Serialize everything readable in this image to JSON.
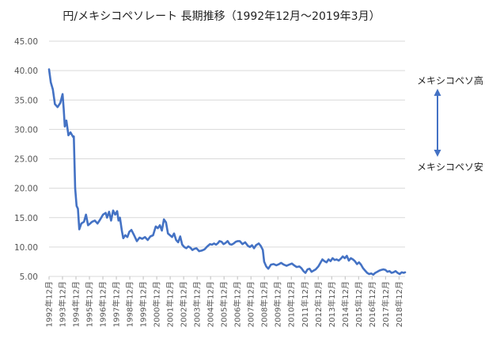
{
  "chart_data": {
    "type": "line",
    "title": "円/メキシコペソレート 長期推移（1992年12月～2019年3月）",
    "xlabel": "",
    "ylabel": "",
    "ylim": [
      5,
      45
    ],
    "yticks": [
      "5.00",
      "10.00",
      "15.00",
      "20.00",
      "25.00",
      "30.00",
      "35.00",
      "40.00",
      "45.00"
    ],
    "x_labels": [
      "1992年12月",
      "1993年12月",
      "1994年12月",
      "1995年12月",
      "1996年12月",
      "1997年12月",
      "1998年12月",
      "1999年12月",
      "2000年12月",
      "2001年12月",
      "2002年12月",
      "2003年12月",
      "2004年12月",
      "2005年12月",
      "2006年12月",
      "2007年12月",
      "2008年12月",
      "2009年12月",
      "2010年12月",
      "2011年12月",
      "2012年12月",
      "2013年12月",
      "2014年12月",
      "2015年12月",
      "2016年12月",
      "2017年12月",
      "2018年12月"
    ],
    "grid": "horizontal",
    "legend": "none",
    "series_color": "#4472C4",
    "series": [
      {
        "name": "",
        "points": [
          [
            1992.92,
            40.2
          ],
          [
            1993.05,
            38.0
          ],
          [
            1993.2,
            36.8
          ],
          [
            1993.35,
            34.3
          ],
          [
            1993.55,
            33.8
          ],
          [
            1993.75,
            34.5
          ],
          [
            1993.92,
            36.0
          ],
          [
            1994.0,
            33.5
          ],
          [
            1994.08,
            30.5
          ],
          [
            1994.2,
            31.5
          ],
          [
            1994.35,
            29.0
          ],
          [
            1994.5,
            29.5
          ],
          [
            1994.7,
            28.7
          ],
          [
            1994.75,
            28.8
          ],
          [
            1994.85,
            20.0
          ],
          [
            1994.95,
            17.0
          ],
          [
            1995.05,
            16.5
          ],
          [
            1995.15,
            13.0
          ],
          [
            1995.3,
            14.0
          ],
          [
            1995.5,
            14.3
          ],
          [
            1995.65,
            15.5
          ],
          [
            1995.8,
            13.7
          ],
          [
            1995.95,
            14.0
          ],
          [
            1996.1,
            14.3
          ],
          [
            1996.3,
            14.5
          ],
          [
            1996.5,
            14.0
          ],
          [
            1996.7,
            14.7
          ],
          [
            1996.9,
            15.5
          ],
          [
            1997.1,
            15.8
          ],
          [
            1997.2,
            15.0
          ],
          [
            1997.35,
            16.0
          ],
          [
            1997.5,
            14.5
          ],
          [
            1997.65,
            16.2
          ],
          [
            1997.8,
            15.5
          ],
          [
            1997.95,
            16.1
          ],
          [
            1998.05,
            14.5
          ],
          [
            1998.15,
            15.0
          ],
          [
            1998.3,
            12.7
          ],
          [
            1998.4,
            11.5
          ],
          [
            1998.55,
            12.0
          ],
          [
            1998.7,
            11.7
          ],
          [
            1998.85,
            12.6
          ],
          [
            1999.0,
            12.9
          ],
          [
            1999.2,
            12.0
          ],
          [
            1999.4,
            11.0
          ],
          [
            1999.6,
            11.6
          ],
          [
            1999.8,
            11.4
          ],
          [
            2000.0,
            11.7
          ],
          [
            2000.2,
            11.2
          ],
          [
            2000.4,
            11.8
          ],
          [
            2000.6,
            12.0
          ],
          [
            2000.8,
            13.5
          ],
          [
            2000.95,
            13.2
          ],
          [
            2001.1,
            13.7
          ],
          [
            2001.25,
            12.8
          ],
          [
            2001.4,
            14.7
          ],
          [
            2001.55,
            14.2
          ],
          [
            2001.7,
            12.3
          ],
          [
            2001.85,
            12.0
          ],
          [
            2002.0,
            11.7
          ],
          [
            2002.15,
            12.3
          ],
          [
            2002.3,
            11.2
          ],
          [
            2002.45,
            10.8
          ],
          [
            2002.6,
            11.8
          ],
          [
            2002.75,
            10.4
          ],
          [
            2002.9,
            10.0
          ],
          [
            2003.05,
            9.8
          ],
          [
            2003.2,
            10.1
          ],
          [
            2003.35,
            9.9
          ],
          [
            2003.5,
            9.5
          ],
          [
            2003.65,
            9.7
          ],
          [
            2003.8,
            9.8
          ],
          [
            2004.0,
            9.3
          ],
          [
            2004.2,
            9.4
          ],
          [
            2004.4,
            9.6
          ],
          [
            2004.6,
            10.1
          ],
          [
            2004.8,
            10.5
          ],
          [
            2004.95,
            10.4
          ],
          [
            2005.1,
            10.6
          ],
          [
            2005.25,
            10.4
          ],
          [
            2005.4,
            10.7
          ],
          [
            2005.5,
            11.0
          ],
          [
            2005.65,
            10.9
          ],
          [
            2005.8,
            10.5
          ],
          [
            2005.95,
            10.7
          ],
          [
            2006.1,
            11.0
          ],
          [
            2006.25,
            10.5
          ],
          [
            2006.4,
            10.4
          ],
          [
            2006.55,
            10.6
          ],
          [
            2006.7,
            10.9
          ],
          [
            2006.85,
            11.0
          ],
          [
            2007.0,
            11.0
          ],
          [
            2007.2,
            10.5
          ],
          [
            2007.4,
            10.8
          ],
          [
            2007.6,
            10.2
          ],
          [
            2007.75,
            10.0
          ],
          [
            2007.9,
            10.3
          ],
          [
            2008.05,
            9.8
          ],
          [
            2008.2,
            10.3
          ],
          [
            2008.4,
            10.6
          ],
          [
            2008.55,
            10.2
          ],
          [
            2008.7,
            9.5
          ],
          [
            2008.8,
            7.5
          ],
          [
            2008.95,
            6.7
          ],
          [
            2009.1,
            6.3
          ],
          [
            2009.3,
            7.0
          ],
          [
            2009.5,
            7.1
          ],
          [
            2009.7,
            6.9
          ],
          [
            2009.9,
            7.1
          ],
          [
            2010.05,
            7.3
          ],
          [
            2010.25,
            7.0
          ],
          [
            2010.45,
            6.8
          ],
          [
            2010.65,
            7.0
          ],
          [
            2010.85,
            7.2
          ],
          [
            2011.0,
            6.9
          ],
          [
            2011.2,
            6.6
          ],
          [
            2011.4,
            6.7
          ],
          [
            2011.55,
            6.4
          ],
          [
            2011.7,
            5.9
          ],
          [
            2011.85,
            5.6
          ],
          [
            2012.0,
            6.2
          ],
          [
            2012.15,
            6.3
          ],
          [
            2012.3,
            5.8
          ],
          [
            2012.45,
            6.0
          ],
          [
            2012.6,
            6.2
          ],
          [
            2012.8,
            6.7
          ],
          [
            2012.95,
            7.3
          ],
          [
            2013.1,
            7.9
          ],
          [
            2013.25,
            7.6
          ],
          [
            2013.4,
            7.4
          ],
          [
            2013.55,
            7.9
          ],
          [
            2013.7,
            7.6
          ],
          [
            2013.85,
            8.1
          ],
          [
            2014.0,
            7.8
          ],
          [
            2014.15,
            7.9
          ],
          [
            2014.3,
            7.7
          ],
          [
            2014.45,
            8.0
          ],
          [
            2014.6,
            8.4
          ],
          [
            2014.75,
            8.1
          ],
          [
            2014.9,
            8.5
          ],
          [
            2015.05,
            7.7
          ],
          [
            2015.2,
            8.1
          ],
          [
            2015.35,
            7.9
          ],
          [
            2015.5,
            7.6
          ],
          [
            2015.65,
            7.1
          ],
          [
            2015.8,
            7.4
          ],
          [
            2015.95,
            7.0
          ],
          [
            2016.1,
            6.4
          ],
          [
            2016.25,
            6.0
          ],
          [
            2016.4,
            5.6
          ],
          [
            2016.55,
            5.4
          ],
          [
            2016.7,
            5.5
          ],
          [
            2016.85,
            5.3
          ],
          [
            2017.0,
            5.6
          ],
          [
            2017.15,
            5.8
          ],
          [
            2017.3,
            6.0
          ],
          [
            2017.45,
            6.1
          ],
          [
            2017.6,
            6.2
          ],
          [
            2017.75,
            6.1
          ],
          [
            2017.9,
            5.8
          ],
          [
            2018.05,
            5.9
          ],
          [
            2018.2,
            5.6
          ],
          [
            2018.35,
            5.7
          ],
          [
            2018.5,
            5.9
          ],
          [
            2018.65,
            5.6
          ],
          [
            2018.8,
            5.4
          ],
          [
            2018.95,
            5.7
          ],
          [
            2019.1,
            5.6
          ],
          [
            2019.2,
            5.7
          ]
        ]
      }
    ],
    "annotations": {
      "high": "メキシコペソ高",
      "low": "メキシコペソ安"
    }
  }
}
